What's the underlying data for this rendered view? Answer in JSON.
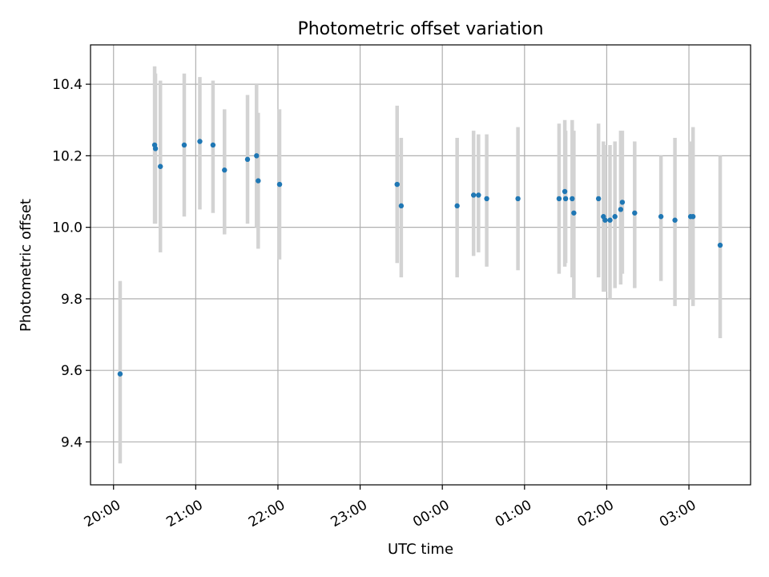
{
  "chart_data": {
    "type": "scatter",
    "title": "Photometric offset variation",
    "xlabel": "UTC time",
    "ylabel": "Photometric offset",
    "x_unit": "UTC time (hours; values >= 24 are after midnight)",
    "xlim": [
      19.72,
      27.75
    ],
    "ylim": [
      9.28,
      10.51
    ],
    "x_ticks": [
      {
        "value": 20,
        "label": "20:00"
      },
      {
        "value": 21,
        "label": "21:00"
      },
      {
        "value": 22,
        "label": "22:00"
      },
      {
        "value": 23,
        "label": "23:00"
      },
      {
        "value": 24,
        "label": "00:00"
      },
      {
        "value": 25,
        "label": "01:00"
      },
      {
        "value": 26,
        "label": "02:00"
      },
      {
        "value": 27,
        "label": "03:00"
      }
    ],
    "y_ticks": [
      {
        "value": 9.4,
        "label": "9.4"
      },
      {
        "value": 9.6,
        "label": "9.6"
      },
      {
        "value": 9.8,
        "label": "9.8"
      },
      {
        "value": 10.0,
        "label": "10.0"
      },
      {
        "value": 10.2,
        "label": "10.2"
      },
      {
        "value": 10.4,
        "label": "10.4"
      }
    ],
    "grid": true,
    "colors": {
      "point": "#1f77b4",
      "errorbar": "#d3d3d3",
      "grid": "#b0b0b0"
    },
    "points": [
      {
        "x": 20.08,
        "y": 9.59,
        "ylo": 9.34,
        "yhi": 9.85
      },
      {
        "x": 20.5,
        "y": 10.23,
        "ylo": 10.01,
        "yhi": 10.45
      },
      {
        "x": 20.51,
        "y": 10.22,
        "ylo": 10.01,
        "yhi": 10.43
      },
      {
        "x": 20.57,
        "y": 10.17,
        "ylo": 9.93,
        "yhi": 10.41
      },
      {
        "x": 20.86,
        "y": 10.23,
        "ylo": 10.03,
        "yhi": 10.43
      },
      {
        "x": 21.05,
        "y": 10.24,
        "ylo": 10.05,
        "yhi": 10.42
      },
      {
        "x": 21.21,
        "y": 10.23,
        "ylo": 10.04,
        "yhi": 10.41
      },
      {
        "x": 21.35,
        "y": 10.16,
        "ylo": 9.98,
        "yhi": 10.33
      },
      {
        "x": 21.63,
        "y": 10.19,
        "ylo": 10.01,
        "yhi": 10.37
      },
      {
        "x": 21.74,
        "y": 10.2,
        "ylo": 10.0,
        "yhi": 10.4
      },
      {
        "x": 21.76,
        "y": 10.13,
        "ylo": 9.94,
        "yhi": 10.32
      },
      {
        "x": 22.02,
        "y": 10.12,
        "ylo": 9.91,
        "yhi": 10.33
      },
      {
        "x": 23.45,
        "y": 10.12,
        "ylo": 9.9,
        "yhi": 10.34
      },
      {
        "x": 23.5,
        "y": 10.06,
        "ylo": 9.86,
        "yhi": 10.25
      },
      {
        "x": 24.18,
        "y": 10.06,
        "ylo": 9.86,
        "yhi": 10.25
      },
      {
        "x": 24.38,
        "y": 10.09,
        "ylo": 9.92,
        "yhi": 10.27
      },
      {
        "x": 24.44,
        "y": 10.09,
        "ylo": 9.93,
        "yhi": 10.26
      },
      {
        "x": 24.54,
        "y": 10.08,
        "ylo": 9.89,
        "yhi": 10.26
      },
      {
        "x": 24.92,
        "y": 10.08,
        "ylo": 9.88,
        "yhi": 10.28
      },
      {
        "x": 25.42,
        "y": 10.08,
        "ylo": 9.87,
        "yhi": 10.29
      },
      {
        "x": 25.49,
        "y": 10.1,
        "ylo": 9.89,
        "yhi": 10.3
      },
      {
        "x": 25.5,
        "y": 10.08,
        "ylo": 9.9,
        "yhi": 10.27
      },
      {
        "x": 25.58,
        "y": 10.08,
        "ylo": 9.86,
        "yhi": 10.3
      },
      {
        "x": 25.6,
        "y": 10.04,
        "ylo": 9.8,
        "yhi": 10.27
      },
      {
        "x": 25.9,
        "y": 10.08,
        "ylo": 9.86,
        "yhi": 10.29
      },
      {
        "x": 25.96,
        "y": 10.03,
        "ylo": 9.82,
        "yhi": 10.24
      },
      {
        "x": 25.98,
        "y": 10.02,
        "ylo": 9.82,
        "yhi": 10.23
      },
      {
        "x": 26.04,
        "y": 10.02,
        "ylo": 9.8,
        "yhi": 10.23
      },
      {
        "x": 26.1,
        "y": 10.03,
        "ylo": 9.83,
        "yhi": 10.24
      },
      {
        "x": 26.17,
        "y": 10.05,
        "ylo": 9.84,
        "yhi": 10.27
      },
      {
        "x": 26.19,
        "y": 10.07,
        "ylo": 9.87,
        "yhi": 10.27
      },
      {
        "x": 26.34,
        "y": 10.04,
        "ylo": 9.83,
        "yhi": 10.24
      },
      {
        "x": 26.66,
        "y": 10.03,
        "ylo": 9.85,
        "yhi": 10.2
      },
      {
        "x": 26.83,
        "y": 10.02,
        "ylo": 9.78,
        "yhi": 10.25
      },
      {
        "x": 27.02,
        "y": 10.03,
        "ylo": 9.8,
        "yhi": 10.24
      },
      {
        "x": 27.05,
        "y": 10.03,
        "ylo": 9.78,
        "yhi": 10.28
      },
      {
        "x": 27.38,
        "y": 9.95,
        "ylo": 9.69,
        "yhi": 10.2
      }
    ]
  }
}
